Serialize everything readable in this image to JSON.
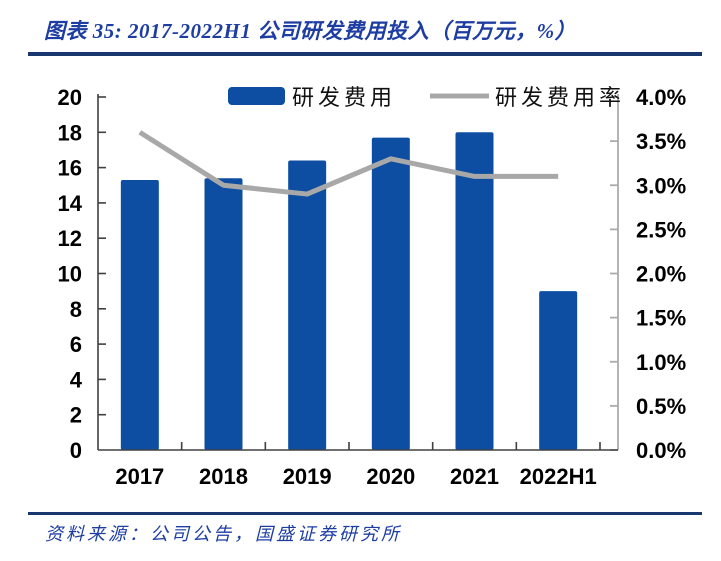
{
  "figure": {
    "title": "图表 35:  2017-2022H1 公司研发费用投入（百万元，%）",
    "source": "资料来源：公司公告，国盛证券研究所"
  },
  "chart_data": {
    "type": "bar",
    "subtype": "bar-line-combo",
    "title": "2017-2022H1 公司研发费用投入（百万元，%）",
    "categories": [
      "2017",
      "2018",
      "2019",
      "2020",
      "2021",
      "2022H1"
    ],
    "series": [
      {
        "name": "研发费用",
        "type": "bar",
        "axis": "left",
        "unit": "百万元",
        "color": "#0D4EA2",
        "values": [
          15.3,
          15.4,
          16.4,
          17.7,
          18.0,
          9.0
        ]
      },
      {
        "name": "研发费用率",
        "type": "line",
        "axis": "right",
        "unit": "%",
        "color": "#A8A8A8",
        "values": [
          3.6,
          3.0,
          2.9,
          3.3,
          3.1,
          3.1
        ]
      }
    ],
    "left_axis": {
      "min": 0,
      "max": 20,
      "step": 2,
      "tick_labels": [
        "0",
        "2",
        "4",
        "6",
        "8",
        "10",
        "12",
        "14",
        "16",
        "18",
        "20"
      ]
    },
    "right_axis": {
      "min": 0,
      "max": 4,
      "step": 0.5,
      "tick_labels": [
        "0.0%",
        "0.5%",
        "1.0%",
        "1.5%",
        "2.0%",
        "2.5%",
        "3.0%",
        "3.5%",
        "4.0%"
      ]
    },
    "legend_position": "top",
    "grid": false
  },
  "colors": {
    "rule_navy": "#17376E",
    "title_blue": "#1D3DA2",
    "bar_blue": "#0D4EA2",
    "line_gray": "#A8A8A8",
    "axis_dark": "#404040",
    "axis_gray": "#ABABAB"
  }
}
